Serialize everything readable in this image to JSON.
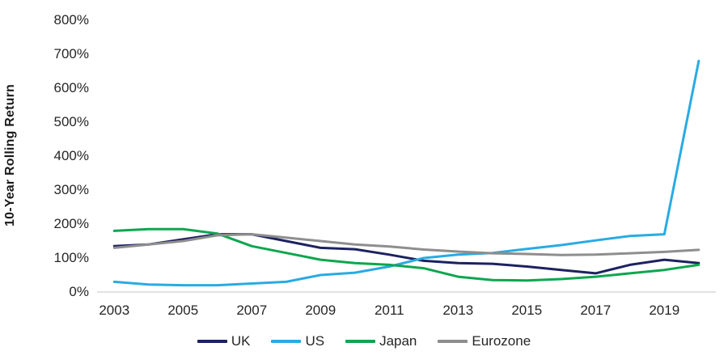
{
  "chart_data": {
    "type": "line",
    "title": "",
    "ylabel": "10-Year Rolling Return",
    "xlabel": "",
    "ylim": [
      0,
      800
    ],
    "y_tick_labels": [
      "0%",
      "100%",
      "200%",
      "300%",
      "400%",
      "500%",
      "600%",
      "700%",
      "800%"
    ],
    "x_tick_labels": [
      "2003",
      "2005",
      "2007",
      "2009",
      "2011",
      "2013",
      "2015",
      "2017",
      "2019"
    ],
    "categories": [
      2003,
      2004,
      2005,
      2006,
      2007,
      2008,
      2009,
      2010,
      2011,
      2012,
      2013,
      2014,
      2015,
      2016,
      2017,
      2018,
      2019,
      2020
    ],
    "grid": "baseline-only",
    "legend_position": "bottom",
    "baseline_color": "#d9d9d9",
    "series": [
      {
        "name": "UK",
        "color": "#1c2260",
        "values": [
          135,
          140,
          155,
          170,
          170,
          150,
          130,
          126,
          110,
          92,
          85,
          83,
          75,
          65,
          55,
          80,
          95,
          85
        ]
      },
      {
        "name": "US",
        "color": "#29abe2",
        "values": [
          30,
          22,
          20,
          20,
          25,
          30,
          50,
          57,
          75,
          100,
          110,
          115,
          127,
          138,
          152,
          165,
          170,
          680
        ]
      },
      {
        "name": "Japan",
        "color": "#0ea64e",
        "values": [
          180,
          185,
          185,
          172,
          135,
          115,
          95,
          85,
          80,
          70,
          45,
          35,
          34,
          38,
          45,
          55,
          65,
          80
        ]
      },
      {
        "name": "Eurozone",
        "color": "#8e8e8e",
        "values": [
          130,
          140,
          150,
          167,
          170,
          160,
          150,
          140,
          134,
          125,
          119,
          114,
          112,
          109,
          110,
          114,
          118,
          124
        ]
      }
    ]
  }
}
